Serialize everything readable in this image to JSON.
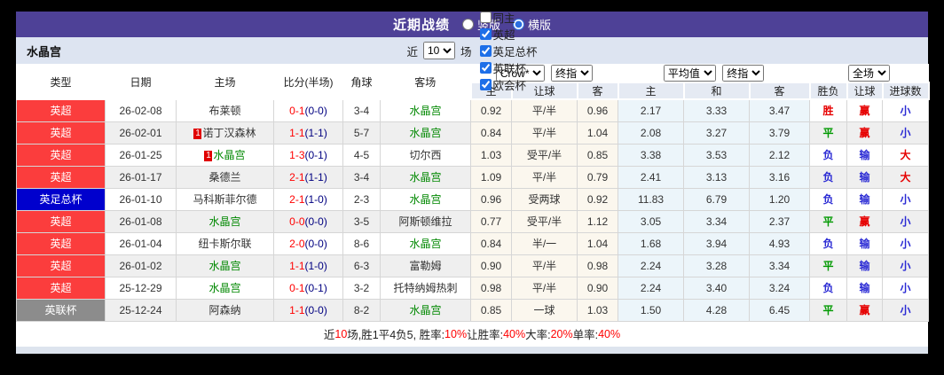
{
  "titlebar": {
    "title": "近期战绩",
    "radios": [
      {
        "label": "竖版",
        "checked": false
      },
      {
        "label": "横版",
        "checked": true
      }
    ]
  },
  "filterbar": {
    "team": "水晶宫",
    "near_label": "近",
    "count_value": "10",
    "games_label": "场",
    "checkboxes": [
      {
        "label": "同主",
        "checked": false
      },
      {
        "label": "英超",
        "checked": true
      },
      {
        "label": "英足总杯",
        "checked": true
      },
      {
        "label": "英联杯",
        "checked": true
      },
      {
        "label": "欧会杯",
        "checked": true
      }
    ]
  },
  "table": {
    "columns": [
      "类型",
      "日期",
      "主场",
      "比分(半场)",
      "角球",
      "客场"
    ],
    "selects": {
      "odds_source": "Crow*",
      "odds_type_asian": "终指",
      "average": "平均值",
      "odds_type_euro": "终指",
      "scope": "全场"
    },
    "subheaders": [
      "主",
      "让球",
      "客",
      "主",
      "和",
      "客",
      "胜负",
      "让球",
      "进球数"
    ],
    "rows": [
      {
        "type": "英超",
        "date": "26-02-08",
        "home": "布莱顿",
        "home_team": false,
        "home_card": "",
        "score": "0-1",
        "half": "(0-0)",
        "corners": "3-4",
        "away": "水晶宫",
        "away_team": true,
        "h1": "0.92",
        "line": "平/半",
        "h2": "0.96",
        "e1": "2.17",
        "e2": "3.33",
        "e3": "3.47",
        "r1": "胜",
        "r2": "赢",
        "r3": "小"
      },
      {
        "type": "英超",
        "date": "26-02-01",
        "home": "诺丁汉森林",
        "home_team": false,
        "home_card": "1",
        "score": "1-1",
        "half": "(1-1)",
        "corners": "5-7",
        "away": "水晶宫",
        "away_team": true,
        "h1": "0.84",
        "line": "平/半",
        "h2": "1.04",
        "e1": "2.08",
        "e2": "3.27",
        "e3": "3.79",
        "r1": "平",
        "r2": "赢",
        "r3": "小"
      },
      {
        "type": "英超",
        "date": "26-01-25",
        "home": "水晶宫",
        "home_team": true,
        "home_card": "1",
        "score": "1-3",
        "half": "(0-1)",
        "corners": "4-5",
        "away": "切尔西",
        "away_team": false,
        "h1": "1.03",
        "line": "受平/半",
        "h2": "0.85",
        "e1": "3.38",
        "e2": "3.53",
        "e3": "2.12",
        "r1": "负",
        "r2": "输",
        "r3": "大"
      },
      {
        "type": "英超",
        "date": "26-01-17",
        "home": "桑德兰",
        "home_team": false,
        "home_card": "",
        "score": "2-1",
        "half": "(1-1)",
        "corners": "3-4",
        "away": "水晶宫",
        "away_team": true,
        "h1": "1.09",
        "line": "平/半",
        "h2": "0.79",
        "e1": "2.41",
        "e2": "3.13",
        "e3": "3.16",
        "r1": "负",
        "r2": "输",
        "r3": "大"
      },
      {
        "type": "英足总杯",
        "date": "26-01-10",
        "home": "马科斯菲尔德",
        "home_team": false,
        "home_card": "",
        "score": "2-1",
        "half": "(1-0)",
        "corners": "2-3",
        "away": "水晶宫",
        "away_team": true,
        "h1": "0.96",
        "line": "受两球",
        "h2": "0.92",
        "e1": "11.83",
        "e2": "6.79",
        "e3": "1.20",
        "r1": "负",
        "r2": "输",
        "r3": "小"
      },
      {
        "type": "英超",
        "date": "26-01-08",
        "home": "水晶宫",
        "home_team": true,
        "home_card": "",
        "score": "0-0",
        "half": "(0-0)",
        "corners": "3-5",
        "away": "阿斯顿维拉",
        "away_team": false,
        "h1": "0.77",
        "line": "受平/半",
        "h2": "1.12",
        "e1": "3.05",
        "e2": "3.34",
        "e3": "2.37",
        "r1": "平",
        "r2": "赢",
        "r3": "小"
      },
      {
        "type": "英超",
        "date": "26-01-04",
        "home": "纽卡斯尔联",
        "home_team": false,
        "home_card": "",
        "score": "2-0",
        "half": "(0-0)",
        "corners": "8-6",
        "away": "水晶宫",
        "away_team": true,
        "h1": "0.84",
        "line": "半/一",
        "h2": "1.04",
        "e1": "1.68",
        "e2": "3.94",
        "e3": "4.93",
        "r1": "负",
        "r2": "输",
        "r3": "小"
      },
      {
        "type": "英超",
        "date": "26-01-02",
        "home": "水晶宫",
        "home_team": true,
        "home_card": "",
        "score": "1-1",
        "half": "(1-0)",
        "corners": "6-3",
        "away": "富勒姆",
        "away_team": false,
        "h1": "0.90",
        "line": "平/半",
        "h2": "0.98",
        "e1": "2.24",
        "e2": "3.28",
        "e3": "3.34",
        "r1": "平",
        "r2": "输",
        "r3": "小"
      },
      {
        "type": "英超",
        "date": "25-12-29",
        "home": "水晶宫",
        "home_team": true,
        "home_card": "",
        "score": "0-1",
        "half": "(0-1)",
        "corners": "3-2",
        "away": "托特纳姆热刺",
        "away_team": false,
        "h1": "0.98",
        "line": "平/半",
        "h2": "0.90",
        "e1": "2.24",
        "e2": "3.40",
        "e3": "3.24",
        "r1": "负",
        "r2": "输",
        "r3": "小"
      },
      {
        "type": "英联杯",
        "date": "25-12-24",
        "home": "阿森纳",
        "home_team": false,
        "home_card": "",
        "score": "1-1",
        "half": "(0-0)",
        "corners": "8-2",
        "away": "水晶宫",
        "away_team": true,
        "h1": "0.85",
        "line": "一球",
        "h2": "1.03",
        "e1": "1.50",
        "e2": "4.28",
        "e3": "6.45",
        "r1": "平",
        "r2": "赢",
        "r3": "小"
      }
    ]
  },
  "footer": {
    "segments": [
      {
        "text": "近",
        "red": false
      },
      {
        "text": "10",
        "red": true
      },
      {
        "text": "场,胜1平4负5, 胜率:",
        "red": false
      },
      {
        "text": "10%",
        "red": true
      },
      {
        "text": " 让胜率:",
        "red": false
      },
      {
        "text": "40%",
        "red": true
      },
      {
        "text": " 大率:",
        "red": false
      },
      {
        "text": "20%",
        "red": true
      },
      {
        "text": " 单率:",
        "red": false
      },
      {
        "text": "40%",
        "red": true
      }
    ]
  },
  "colors": {
    "titlebar_bg": "#4e4197",
    "filterbar_bg": "#dde4f1",
    "type_badges": {
      "英超": "#fb3d3d",
      "英足总杯": "#0000cd",
      "英联杯": "#8c8c8c"
    },
    "team_green": "#008800",
    "score_red": "#ff0000",
    "half_navy": "#000080",
    "status": {
      "胜": "#e60000",
      "平": "#009900",
      "负": "#2a2ad4",
      "赢": "#e60000",
      "输": "#2a2ad4",
      "大": "#e60000",
      "小": "#2a2ad4"
    }
  }
}
